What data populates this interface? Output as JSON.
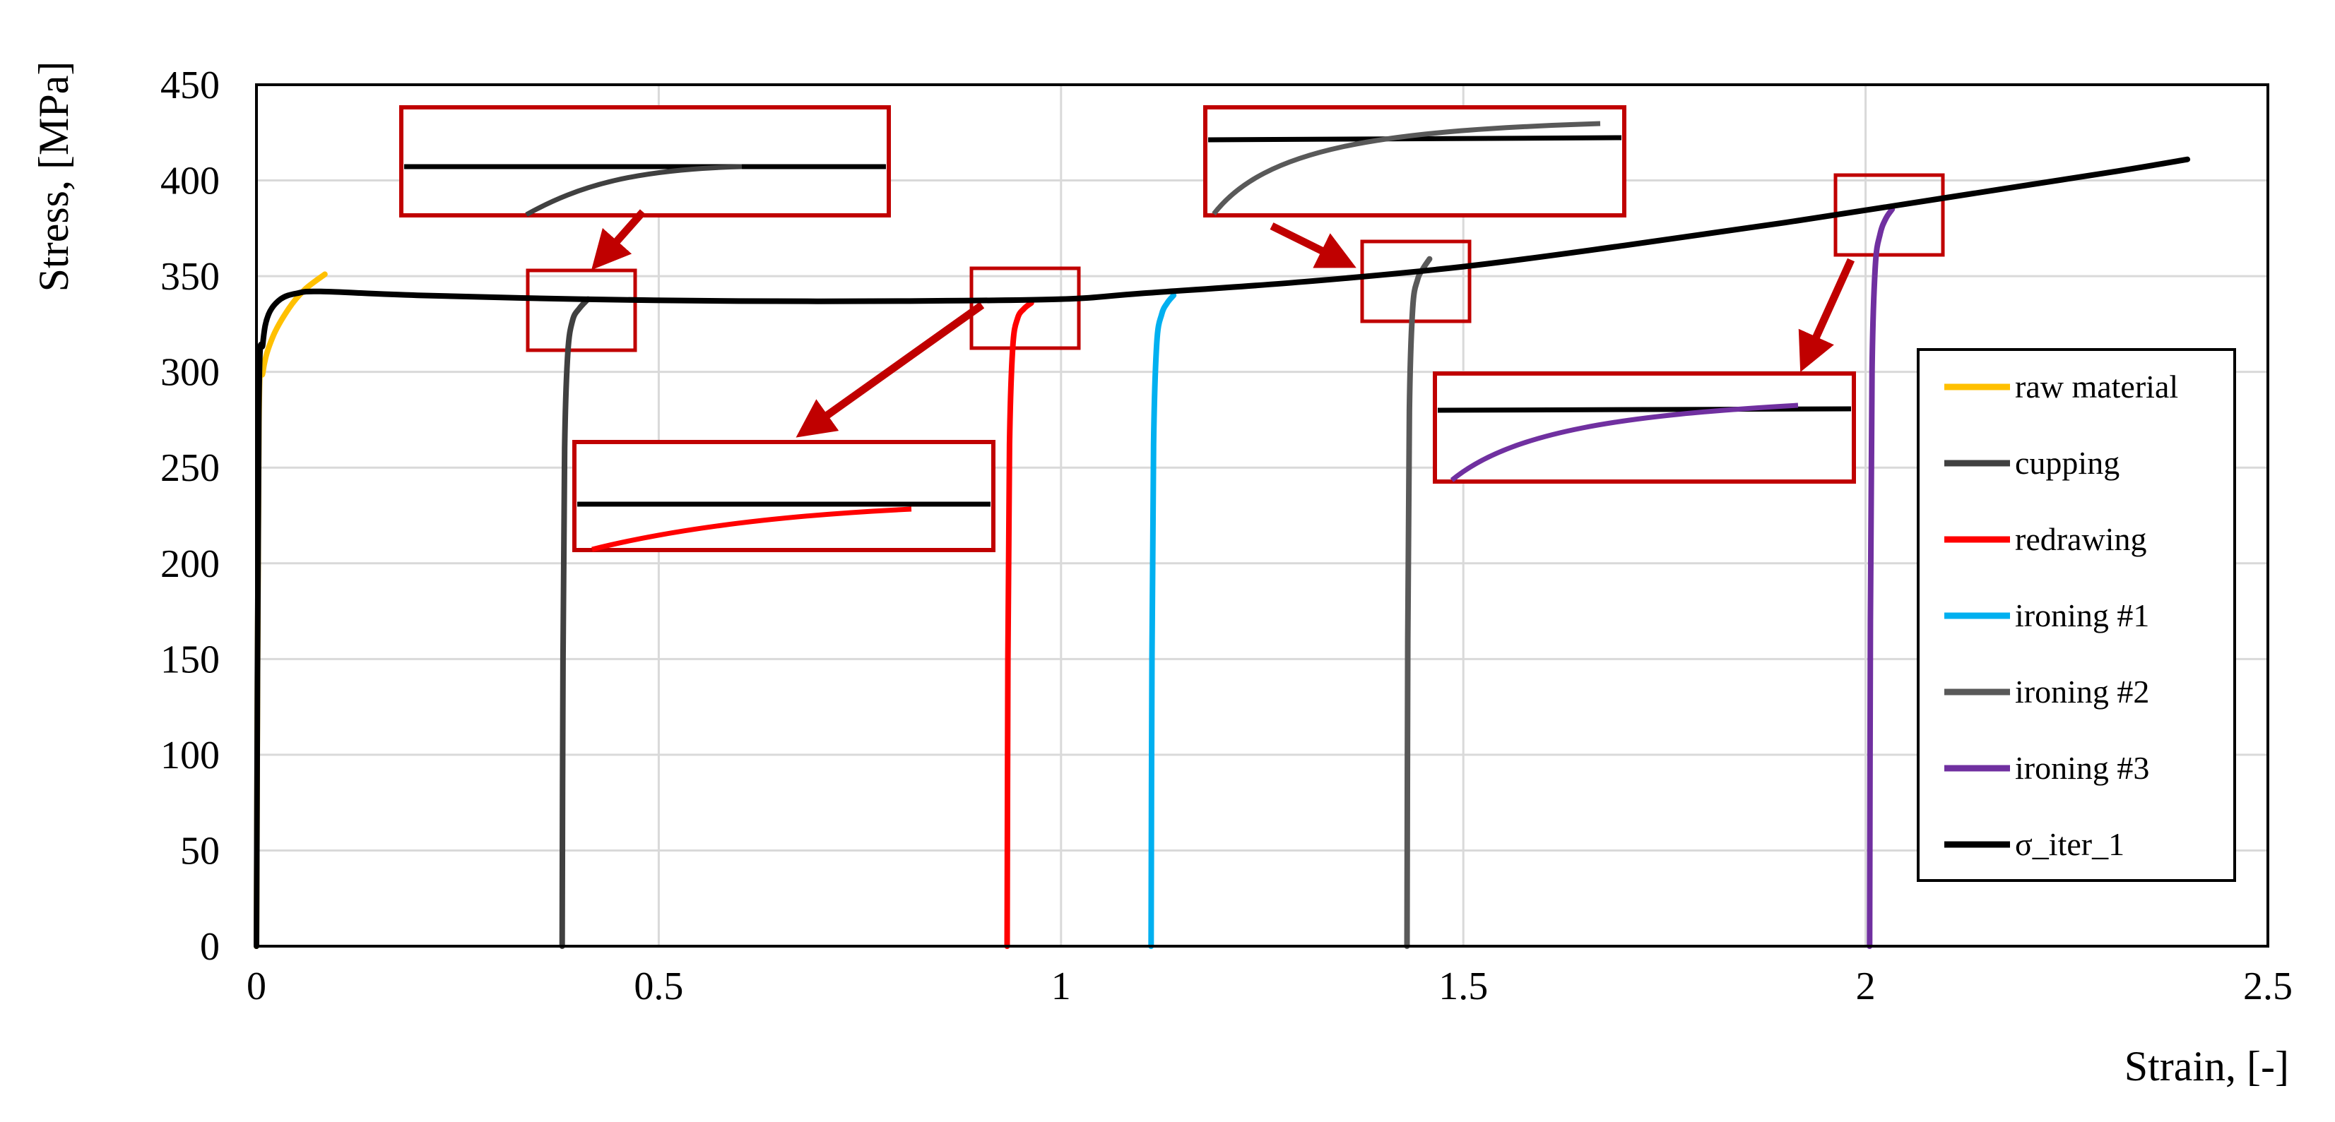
{
  "chart_data": {
    "type": "line",
    "title": "",
    "xlabel": "Strain, [-]",
    "ylabel": "Stress, [MPa]",
    "xlim": [
      0,
      2.5
    ],
    "ylim": [
      0,
      450
    ],
    "xticks": [
      0,
      0.5,
      1,
      1.5,
      2,
      2.5
    ],
    "xtick_labels": [
      "0",
      "0.5",
      "1",
      "1.5",
      "2",
      "2.5"
    ],
    "yticks": [
      0,
      50,
      100,
      150,
      200,
      250,
      300,
      350,
      400,
      450
    ],
    "ytick_labels": [
      "0",
      "50",
      "100",
      "150",
      "200",
      "250",
      "300",
      "350",
      "400",
      "450"
    ],
    "grid": true,
    "legend_position": "right",
    "series": [
      {
        "name": "raw material",
        "color": "#FFC000",
        "x": [
          0.0,
          0.003,
          0.008,
          0.02,
          0.04,
          0.06,
          0.085
        ],
        "y": [
          0,
          270,
          300,
          318,
          333,
          343,
          351
        ]
      },
      {
        "name": "cupping",
        "color": "#404040",
        "x": [
          0.38,
          0.381,
          0.383,
          0.387,
          0.393,
          0.401,
          0.412
        ],
        "y": [
          0,
          150,
          260,
          310,
          327,
          333,
          338
        ]
      },
      {
        "name": "redrawing",
        "color": "#FF0000",
        "x": [
          0.933,
          0.934,
          0.936,
          0.94,
          0.946,
          0.954,
          0.963
        ],
        "y": [
          0,
          150,
          262,
          313,
          328,
          333,
          336
        ]
      },
      {
        "name": "ironing #1",
        "color": "#00B0F0",
        "x": [
          1.112,
          1.113,
          1.115,
          1.119,
          1.125,
          1.132,
          1.14
        ],
        "y": [
          0,
          150,
          262,
          315,
          330,
          336,
          340
        ]
      },
      {
        "name": "ironing #2",
        "color": "#595959",
        "x": [
          1.43,
          1.431,
          1.433,
          1.437,
          1.443,
          1.45,
          1.458
        ],
        "y": [
          0,
          160,
          280,
          333,
          348,
          354,
          359
        ]
      },
      {
        "name": "ironing #3",
        "color": "#7030A0",
        "x": [
          2.005,
          2.006,
          2.008,
          2.012,
          2.018,
          2.025,
          2.033
        ],
        "y": [
          0,
          170,
          300,
          355,
          372,
          380,
          385
        ]
      },
      {
        "name": "σ_iter_1",
        "color": "#000000",
        "x": [
          0.0,
          0.003,
          0.008,
          0.015,
          0.03,
          0.05,
          0.08,
          0.2,
          0.4,
          0.6,
          0.8,
          1.0,
          1.1,
          1.3,
          1.5,
          1.7,
          1.9,
          2.1,
          2.3,
          2.4
        ],
        "y": [
          0,
          280,
          315,
          330,
          338,
          341,
          342,
          340,
          338,
          337,
          337,
          338,
          341,
          347,
          355,
          366,
          378,
          391,
          404,
          411
        ]
      }
    ]
  }
}
